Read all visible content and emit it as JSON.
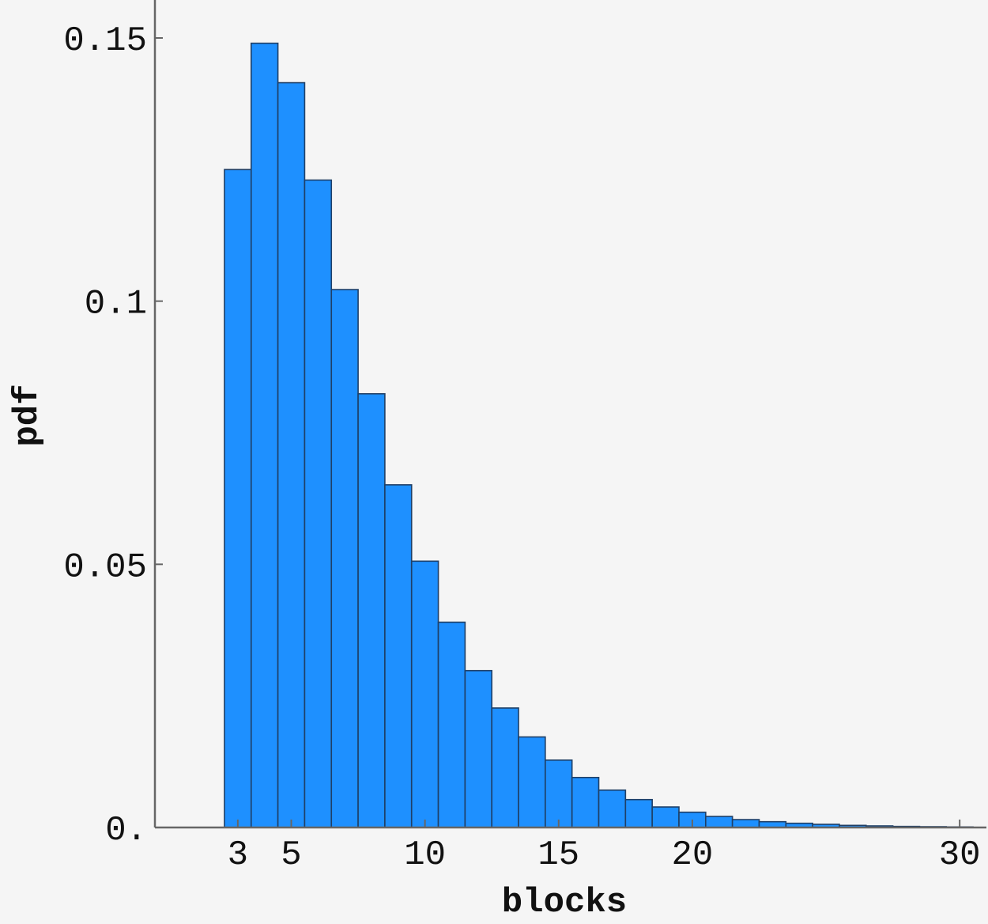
{
  "chart_data": {
    "type": "bar",
    "title": "",
    "xlabel": "blocks",
    "ylabel": "pdf",
    "xlim": [
      -0.1,
      31
    ],
    "ylim": [
      0,
      0.15
    ],
    "x_ticks": [
      {
        "value": 3,
        "label": "3"
      },
      {
        "value": 5,
        "label": "5"
      },
      {
        "value": 10,
        "label": "10"
      },
      {
        "value": 15,
        "label": "15"
      },
      {
        "value": 20,
        "label": "20"
      },
      {
        "value": 30,
        "label": "30"
      }
    ],
    "y_ticks": [
      {
        "value": 0,
        "label": "0."
      },
      {
        "value": 0.05,
        "label": "0.05"
      },
      {
        "value": 0.1,
        "label": "0.1"
      },
      {
        "value": 0.15,
        "label": "0.15"
      }
    ],
    "bin_width": 1,
    "categories": [
      3,
      4,
      5,
      6,
      7,
      8,
      9,
      10,
      11,
      12,
      13,
      14,
      15,
      16,
      17,
      18,
      19,
      20,
      21,
      22,
      23,
      24,
      25,
      26,
      27,
      28,
      29,
      30
    ],
    "values": [
      0.125,
      0.149,
      0.1415,
      0.123,
      0.1022,
      0.0824,
      0.0651,
      0.0506,
      0.039,
      0.0298,
      0.0227,
      0.0172,
      0.0128,
      0.0095,
      0.0071,
      0.0053,
      0.0039,
      0.0029,
      0.0021,
      0.0015,
      0.0011,
      0.0008,
      0.0006,
      0.0004,
      0.0003,
      0.0002,
      0.00015,
      0.0001
    ],
    "grid": false,
    "colors": {
      "bar_fill": "#1e90ff",
      "bar_edge": "#1f3f66",
      "axis": "#666666",
      "background": "#f5f5f5"
    }
  }
}
